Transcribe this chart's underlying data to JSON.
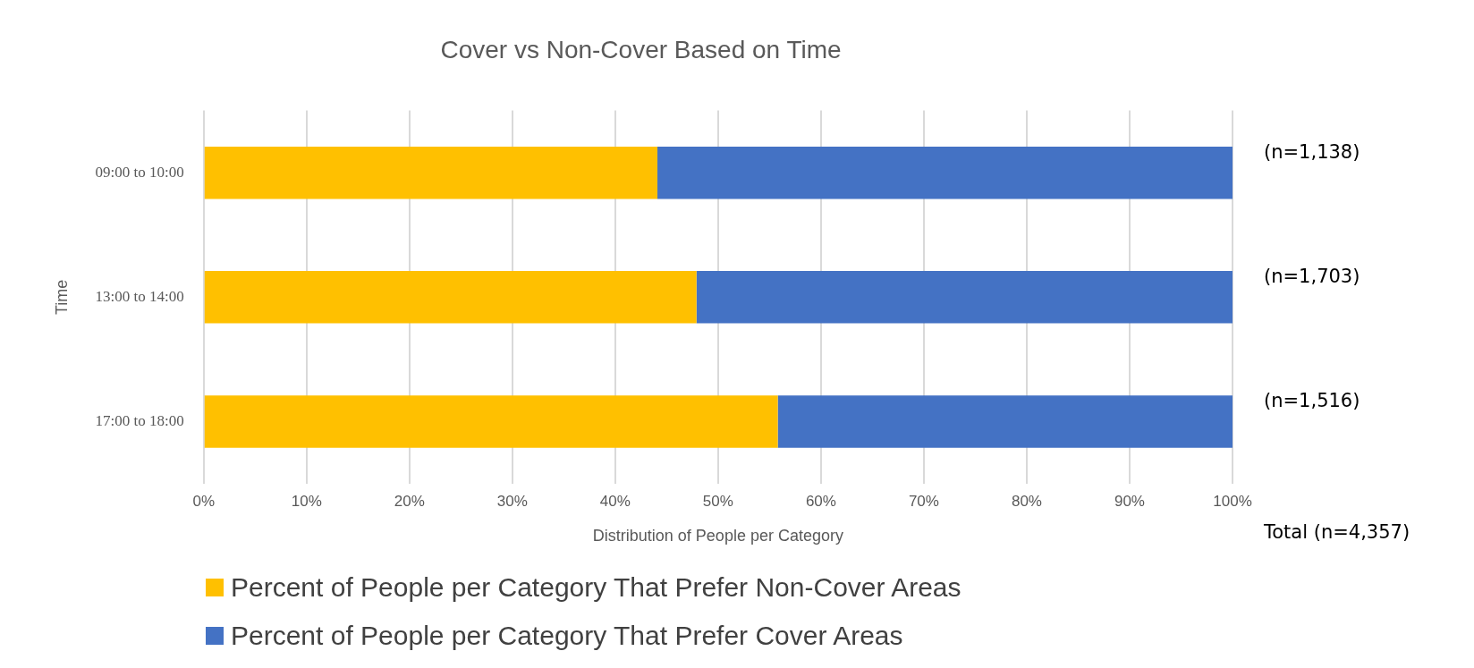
{
  "chart_data": {
    "type": "bar",
    "orientation": "horizontal",
    "stacked": true,
    "title": "Cover vs Non-Cover Based on Time",
    "xlabel": "Distribution of People per Category",
    "ylabel": "Time",
    "categories": [
      "09:00 to 10:00",
      "13:00 to 14:00",
      "17:00 to 18:00"
    ],
    "series": [
      {
        "name": "Percent of People per Category That Prefer Non-Cover Areas",
        "color": "#ffc000",
        "values": [
          44.1,
          47.9,
          55.8
        ]
      },
      {
        "name": "Percent of People per Category That Prefer Cover Areas",
        "color": "#4472c4",
        "values": [
          55.9,
          52.1,
          44.2
        ]
      }
    ],
    "xlim": [
      0,
      100
    ],
    "xticks": [
      {
        "value": 0,
        "label": "0%"
      },
      {
        "value": 10,
        "label": "10%"
      },
      {
        "value": 20,
        "label": "20%"
      },
      {
        "value": 30,
        "label": "30%"
      },
      {
        "value": 40,
        "label": "40%"
      },
      {
        "value": 50,
        "label": "50%"
      },
      {
        "value": 60,
        "label": "60%"
      },
      {
        "value": 70,
        "label": "70%"
      },
      {
        "value": 80,
        "label": "80%"
      },
      {
        "value": 90,
        "label": "90%"
      },
      {
        "value": 100,
        "label": "100%"
      }
    ],
    "grid": "x",
    "legend": "bottom",
    "annotations": [
      "(n=1,138)",
      "(n=1,703)",
      "(n=1,516)",
      "Total (n=4,357)"
    ]
  }
}
